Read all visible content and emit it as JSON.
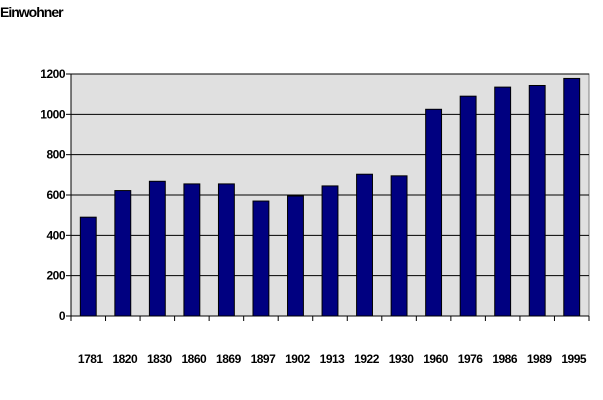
{
  "chart_data": {
    "type": "bar",
    "title": "",
    "xlabel": "",
    "ylabel": "Einwohner",
    "categories": [
      "1781",
      "1820",
      "1830",
      "1860",
      "1869",
      "1897",
      "1902",
      "1913",
      "1922",
      "1930",
      "1960",
      "1976",
      "1986",
      "1989",
      "1995"
    ],
    "values": [
      490,
      622,
      668,
      655,
      655,
      570,
      595,
      645,
      703,
      695,
      1025,
      1090,
      1135,
      1143,
      1178
    ],
    "ylim": [
      0,
      1200
    ],
    "yticks": [
      0,
      200,
      400,
      600,
      800,
      1000,
      1200
    ],
    "grid": true,
    "legend": "none",
    "colors": {
      "bar": "#000080",
      "plot_background": "#e0e0e0",
      "gridline": "#000000"
    }
  }
}
